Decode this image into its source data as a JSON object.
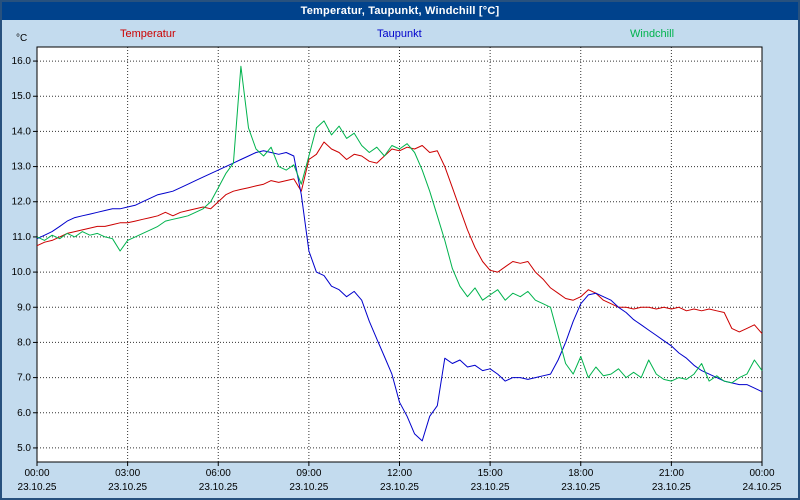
{
  "window": {
    "title": "Temperatur, Taupunkt, Windchill [°C]"
  },
  "colors": {
    "background": "#c3dbee",
    "titlebar": "#00428c",
    "plot_background": "#ffffff",
    "plot_border": "#000000",
    "grid": "#333333",
    "temperatur": "#cc0000",
    "taupunkt": "#0000cc",
    "windchill": "#00b34d"
  },
  "chart_data": {
    "type": "line",
    "title": "Temperatur, Taupunkt, Windchill [°C]",
    "y_unit_label": "°C",
    "xlabel": "",
    "ylabel": "°C",
    "ylim": [
      4.6,
      16.4
    ],
    "y_grid_step": 1.0,
    "grid": true,
    "legend_position": "top",
    "grid_color": "#333333",
    "x_range_hours": 24,
    "x_step_hours": 0.25,
    "x_tick_step_hours": 3,
    "x_ticks": [
      {
        "time": "00:00",
        "date": "23.10.25"
      },
      {
        "time": "03:00",
        "date": "23.10.25"
      },
      {
        "time": "06:00",
        "date": "23.10.25"
      },
      {
        "time": "09:00",
        "date": "23.10.25"
      },
      {
        "time": "12:00",
        "date": "23.10.25"
      },
      {
        "time": "15:00",
        "date": "23.10.25"
      },
      {
        "time": "18:00",
        "date": "23.10.25"
      },
      {
        "time": "21:00",
        "date": "23.10.25"
      },
      {
        "time": "00:00",
        "date": "24.10.25"
      }
    ],
    "series": [
      {
        "name": "Temperatur",
        "color": "#cc0000",
        "values": [
          10.75,
          10.85,
          10.9,
          11.0,
          11.1,
          11.15,
          11.2,
          11.25,
          11.3,
          11.3,
          11.35,
          11.4,
          11.4,
          11.45,
          11.5,
          11.55,
          11.6,
          11.7,
          11.6,
          11.7,
          11.75,
          11.8,
          11.85,
          11.8,
          12.0,
          12.2,
          12.3,
          12.35,
          12.4,
          12.45,
          12.5,
          12.6,
          12.55,
          12.6,
          12.65,
          12.3,
          13.2,
          13.35,
          13.7,
          13.5,
          13.4,
          13.2,
          13.35,
          13.3,
          13.15,
          13.1,
          13.3,
          13.5,
          13.45,
          13.55,
          13.5,
          13.6,
          13.4,
          13.45,
          13.0,
          12.4,
          11.8,
          11.2,
          10.7,
          10.3,
          10.05,
          10.0,
          10.15,
          10.3,
          10.25,
          10.3,
          10.0,
          9.8,
          9.55,
          9.4,
          9.25,
          9.2,
          9.3,
          9.5,
          9.4,
          9.2,
          9.1,
          9.0,
          9.0,
          8.95,
          9.0,
          9.0,
          8.95,
          9.0,
          8.95,
          9.0,
          8.9,
          8.95,
          8.9,
          8.95,
          8.9,
          8.85,
          8.4,
          8.3,
          8.4,
          8.5,
          8.25
        ]
      },
      {
        "name": "Taupunkt",
        "color": "#0000cc",
        "values": [
          10.95,
          11.05,
          11.15,
          11.3,
          11.45,
          11.55,
          11.6,
          11.65,
          11.7,
          11.75,
          11.8,
          11.8,
          11.85,
          11.9,
          12.0,
          12.1,
          12.2,
          12.25,
          12.3,
          12.4,
          12.5,
          12.6,
          12.7,
          12.8,
          12.9,
          13.0,
          13.1,
          13.2,
          13.3,
          13.4,
          13.45,
          13.4,
          13.35,
          13.4,
          13.3,
          12.2,
          10.6,
          10.0,
          9.9,
          9.6,
          9.5,
          9.3,
          9.45,
          9.2,
          8.6,
          8.1,
          7.6,
          7.1,
          6.3,
          5.9,
          5.4,
          5.2,
          5.9,
          6.2,
          7.55,
          7.4,
          7.5,
          7.3,
          7.35,
          7.2,
          7.25,
          7.1,
          6.9,
          7.0,
          7.0,
          6.95,
          7.0,
          7.05,
          7.1,
          7.5,
          8.0,
          8.6,
          9.1,
          9.35,
          9.4,
          9.3,
          9.2,
          9.0,
          8.85,
          8.65,
          8.5,
          8.35,
          8.2,
          8.05,
          7.9,
          7.7,
          7.55,
          7.35,
          7.2,
          7.1,
          7.0,
          6.9,
          6.85,
          6.8,
          6.8,
          6.7,
          6.6
        ]
      },
      {
        "name": "Windchill",
        "color": "#00b34d",
        "values": [
          11.0,
          10.9,
          11.05,
          10.95,
          11.1,
          11.0,
          11.15,
          11.05,
          11.1,
          11.0,
          10.95,
          10.6,
          10.9,
          11.0,
          11.1,
          11.2,
          11.3,
          11.45,
          11.5,
          11.55,
          11.6,
          11.7,
          11.8,
          12.0,
          12.4,
          12.8,
          13.1,
          15.85,
          14.1,
          13.5,
          13.3,
          13.55,
          13.0,
          12.9,
          13.05,
          12.5,
          13.3,
          14.1,
          14.3,
          13.9,
          14.15,
          13.8,
          13.95,
          13.6,
          13.4,
          13.55,
          13.3,
          13.6,
          13.5,
          13.65,
          13.4,
          12.9,
          12.3,
          11.6,
          10.9,
          10.1,
          9.6,
          9.3,
          9.55,
          9.2,
          9.35,
          9.5,
          9.2,
          9.4,
          9.3,
          9.45,
          9.2,
          9.1,
          9.0,
          8.2,
          7.4,
          7.1,
          7.6,
          7.0,
          7.3,
          7.05,
          7.1,
          7.25,
          7.0,
          7.15,
          7.0,
          7.5,
          7.1,
          6.95,
          6.9,
          7.0,
          6.95,
          7.1,
          7.4,
          6.9,
          7.05,
          6.9,
          6.85,
          7.0,
          7.1,
          7.5,
          7.2
        ]
      }
    ]
  }
}
